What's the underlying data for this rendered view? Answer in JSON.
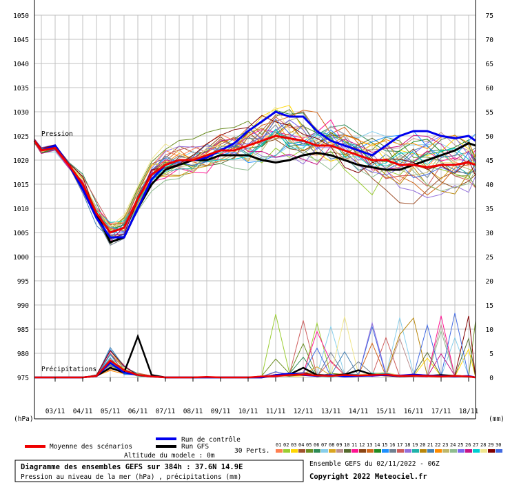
{
  "chart_data": {
    "type": "line",
    "left_axis": {
      "unit": "(hPa)",
      "ticks": [
        1050,
        1045,
        1040,
        1035,
        1030,
        1025,
        1020,
        1015,
        1010,
        1005,
        1000,
        995,
        990,
        985,
        980,
        975
      ],
      "ylim": [
        975,
        1050
      ]
    },
    "right_axis": {
      "unit": "(mm)",
      "ticks": [
        75,
        70,
        65,
        60,
        55,
        50,
        45,
        40,
        35,
        30,
        25,
        20,
        15,
        10,
        5,
        0
      ],
      "ylim": [
        0,
        75
      ]
    },
    "x_ticks": [
      "03/11",
      "04/11",
      "05/11",
      "06/11",
      "07/11",
      "08/11",
      "09/11",
      "10/11",
      "11/11",
      "12/11",
      "13/11",
      "14/11",
      "15/11",
      "16/11",
      "17/11",
      "18/11"
    ],
    "x_range_days": [
      2.25,
      18.25
    ],
    "section_labels": {
      "pressure": "Pression",
      "precip": "Précipitations"
    },
    "grid": true,
    "series": [
      {
        "name": "Moyenne des scénarios",
        "color": "#ee0000",
        "x": [
          2.25,
          2.5,
          3,
          3.5,
          4,
          4.5,
          5,
          5.5,
          6,
          6.5,
          7,
          7.5,
          8,
          8.5,
          9,
          9.5,
          10,
          10.5,
          11,
          11.5,
          12,
          12.5,
          13,
          13.5,
          14,
          14.5,
          15,
          15.5,
          16,
          16.5,
          17,
          17.5,
          18,
          18.25
        ],
        "pressure": [
          1024,
          1022,
          1022.5,
          1019,
          1015,
          1009,
          1005,
          1006,
          1012,
          1017,
          1019,
          1020,
          1020,
          1021,
          1022,
          1022,
          1023,
          1024,
          1025,
          1024.5,
          1024,
          1023,
          1023,
          1022,
          1021,
          1020,
          1020,
          1019,
          1019,
          1018.5,
          1019,
          1019,
          1019.5,
          1019
        ],
        "precip": [
          0,
          0,
          0,
          0,
          0,
          0.3,
          3.5,
          1.5,
          0.5,
          0.2,
          0,
          0,
          0,
          0.1,
          0,
          0,
          0,
          0.2,
          0.3,
          0.5,
          0.6,
          0.4,
          0.3,
          0.5,
          0.4,
          0.5,
          0.6,
          0.3,
          0.4,
          0.3,
          0.2,
          0.3,
          0.2,
          0
        ]
      },
      {
        "name": "Run de contrôle",
        "color": "#0000ee",
        "x": [
          2.25,
          2.5,
          3,
          3.5,
          4,
          4.5,
          5,
          5.5,
          6,
          6.5,
          7,
          7.5,
          8,
          8.5,
          9,
          9.5,
          10,
          10.5,
          11,
          11.5,
          12,
          12.5,
          13,
          13.5,
          14,
          14.5,
          15,
          15.5,
          16,
          16.5,
          17,
          17.5,
          18,
          18.25
        ],
        "pressure": [
          1024,
          1022,
          1023,
          1019,
          1014,
          1008,
          1004,
          1004,
          1010,
          1016,
          1019,
          1020,
          1020,
          1020.5,
          1022,
          1023.5,
          1026,
          1028,
          1030,
          1029,
          1029,
          1026,
          1024,
          1023,
          1022,
          1021,
          1023,
          1025,
          1026,
          1026,
          1025,
          1024.5,
          1025,
          1024
        ],
        "precip": [
          0,
          0,
          0,
          0,
          0,
          0.3,
          3,
          1,
          0.5,
          0.2,
          0,
          0,
          0,
          0,
          0,
          0,
          0,
          0,
          0.5,
          0.8,
          0.5,
          0.3,
          0.5,
          0.2,
          0.3,
          0.4,
          0.5,
          0.3,
          0.6,
          0.4,
          0.3,
          0.2,
          0.3,
          0
        ]
      },
      {
        "name": "Run GFS",
        "color": "#000000",
        "x": [
          2.25,
          2.5,
          3,
          3.5,
          4,
          4.5,
          5,
          5.5,
          6,
          6.5,
          7,
          7.5,
          8,
          8.5,
          9,
          9.5,
          10,
          10.5,
          11,
          11.5,
          12,
          12.5,
          13,
          13.5,
          14,
          14.5,
          15,
          15.5,
          16,
          16.5,
          17,
          17.5,
          18,
          18.25
        ],
        "pressure": [
          1024,
          1022,
          1023,
          1019,
          1014,
          1009,
          1003,
          1004,
          1010,
          1015,
          1018,
          1019,
          1020,
          1020,
          1021,
          1021,
          1021,
          1020,
          1019.5,
          1020,
          1021,
          1021.5,
          1021,
          1020,
          1019,
          1018.5,
          1018,
          1018,
          1019,
          1020,
          1021,
          1022,
          1023.5,
          1023
        ],
        "precip": [
          0,
          0,
          0,
          0,
          0,
          0.3,
          2,
          1,
          8.5,
          0.5,
          0,
          0,
          0,
          0,
          0,
          0,
          0,
          0,
          0.5,
          0.6,
          2,
          0.5,
          0.4,
          0.6,
          1.5,
          0.6,
          0.5,
          0.3,
          0.4,
          0.3,
          0.5,
          0.3,
          0.2,
          0
        ]
      }
    ],
    "perturbation_count": 30
  },
  "legend": {
    "mean": "Moyenne des scénarios",
    "control": "Run de contrôle",
    "gfs": "Run GFS",
    "perts": "30 Perts.",
    "model_altitude": "Altitude du modele : 0m",
    "pert_numbers": [
      "01",
      "02",
      "03",
      "04",
      "05",
      "06",
      "07",
      "08",
      "09",
      "10",
      "11",
      "12",
      "13",
      "14",
      "15",
      "16",
      "17",
      "18",
      "19",
      "20",
      "21",
      "22",
      "23",
      "24",
      "25",
      "26",
      "27",
      "28",
      "29",
      "30"
    ],
    "pert_colors": [
      "#ff7f50",
      "#9acd32",
      "#ffd700",
      "#a0522d",
      "#6b8e23",
      "#2e8b57",
      "#87ceeb",
      "#daa520",
      "#bc8f8f",
      "#556b2f",
      "#ff1493",
      "#8b4513",
      "#d2691e",
      "#228b22",
      "#1e90ff",
      "#708090",
      "#cd5c5c",
      "#9370db",
      "#20b2aa",
      "#b8860b",
      "#4682b4",
      "#ff8c00",
      "#bdb76b",
      "#8fbc8f",
      "#7b68ee",
      "#c71585",
      "#00ced1",
      "#f0e68c",
      "#800000",
      "#4169e1"
    ]
  },
  "info_box": {
    "title": "Diagramme des ensembles GEFS sur 384h : 37.6N 14.9E",
    "subtitle": "Pression au niveau de la mer (hPa) , précipitations (mm)"
  },
  "footer": {
    "ensemble": "Ensemble GEFS du 02/11/2022 - 06Z",
    "copyright": "Copyright 2022 Meteociel.fr"
  }
}
